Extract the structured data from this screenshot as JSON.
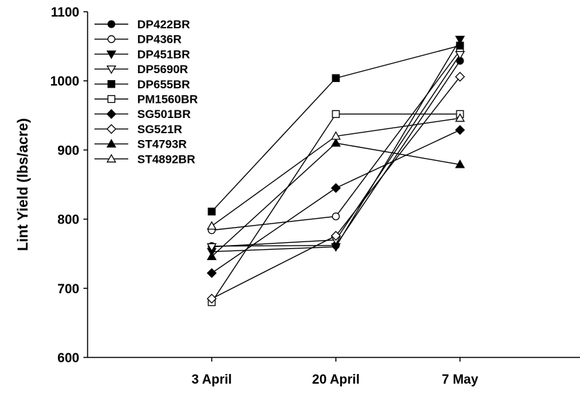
{
  "chart_data": {
    "type": "line",
    "title": "",
    "xlabel": "",
    "ylabel": "Lint Yield (lbs/acre)",
    "categories": [
      "3 April",
      "20 April",
      "7 May"
    ],
    "ylim": [
      600,
      1100
    ],
    "yticks": [
      600,
      700,
      800,
      900,
      1000,
      1100
    ],
    "grid": false,
    "legend_position": "top-left",
    "series": [
      {
        "name": "DP422BR",
        "marker": "circle",
        "fill": "filled",
        "values": [
          761,
          762,
          1029
        ]
      },
      {
        "name": "DP436R",
        "marker": "circle",
        "fill": "open",
        "values": [
          784,
          804,
          1044
        ]
      },
      {
        "name": "DP451BR",
        "marker": "triangle-down",
        "fill": "filled",
        "values": [
          753,
          760,
          1060
        ]
      },
      {
        "name": "DP5690R",
        "marker": "triangle-down",
        "fill": "open",
        "values": [
          760,
          770,
          1038
        ]
      },
      {
        "name": "DP655BR",
        "marker": "square",
        "fill": "filled",
        "values": [
          811,
          1004,
          1051
        ]
      },
      {
        "name": "PM1560BR",
        "marker": "square",
        "fill": "open",
        "values": [
          680,
          952,
          952
        ]
      },
      {
        "name": "SG501BR",
        "marker": "diamond",
        "fill": "filled",
        "values": [
          722,
          845,
          929
        ]
      },
      {
        "name": "SG521R",
        "marker": "diamond",
        "fill": "open",
        "values": [
          685,
          776,
          1006
        ]
      },
      {
        "name": "ST4793R",
        "marker": "triangle-up",
        "fill": "filled",
        "values": [
          746,
          910,
          879
        ]
      },
      {
        "name": "ST4892BR",
        "marker": "triangle-up",
        "fill": "open",
        "values": [
          790,
          920,
          946
        ]
      }
    ]
  }
}
